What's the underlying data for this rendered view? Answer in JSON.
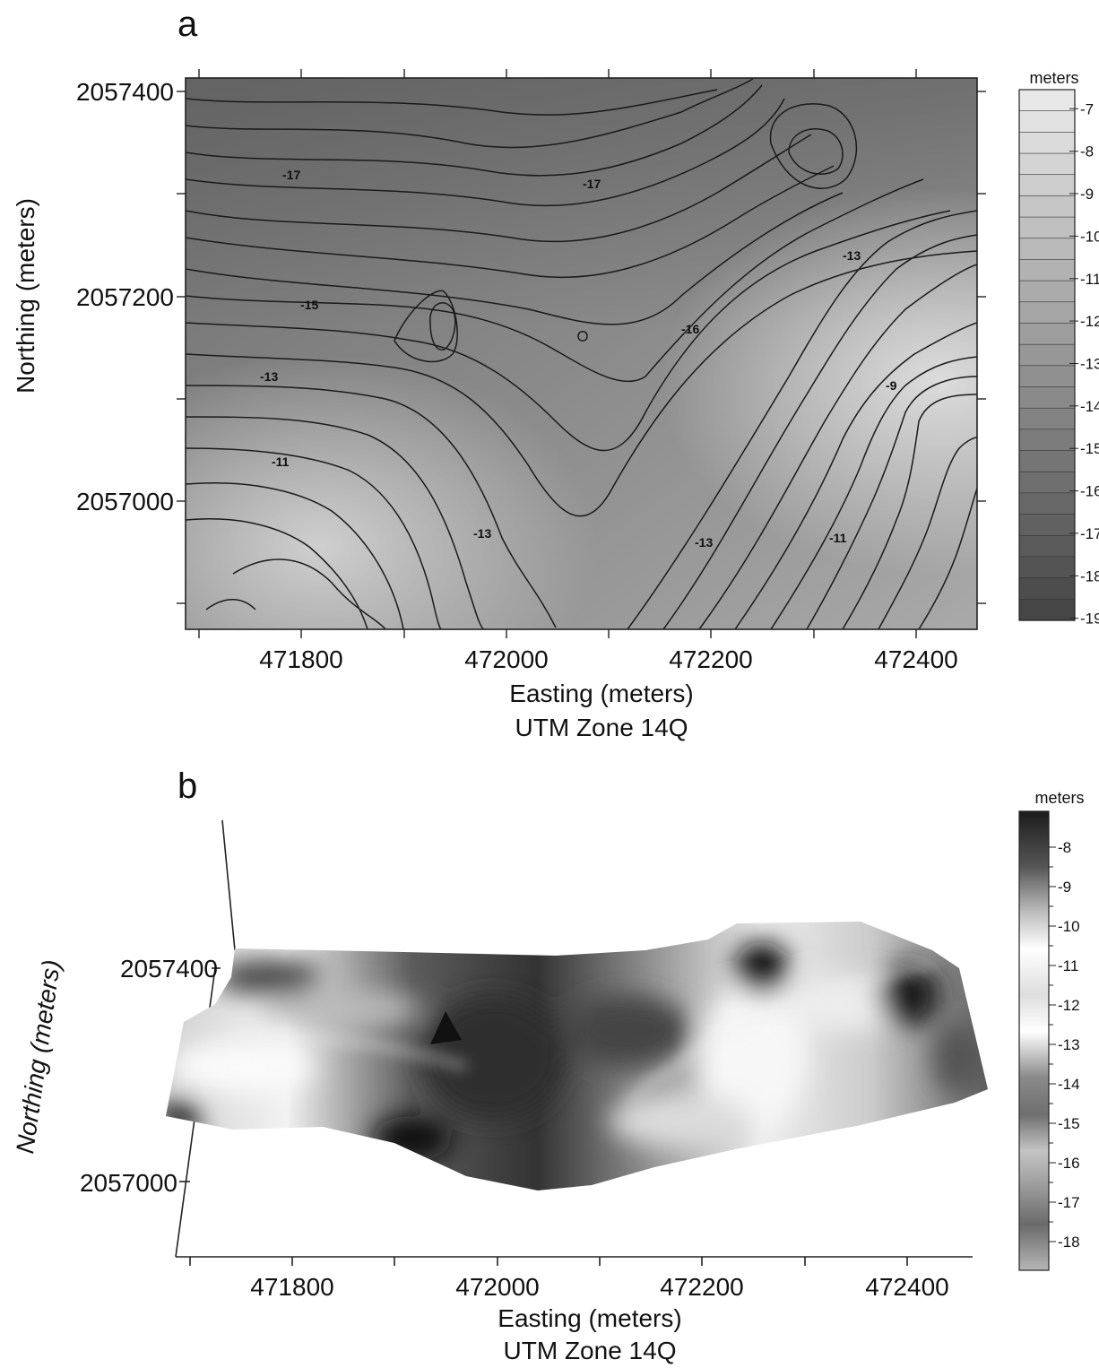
{
  "figure": {
    "panel_a": {
      "letter": "a",
      "x_ticks": [
        "471800",
        "472000",
        "472200",
        "472400"
      ],
      "y_ticks": [
        "2057400",
        "2057200",
        "2057000"
      ],
      "x_title": "Easting (meters)",
      "x_subtitle": "UTM Zone 14Q",
      "y_title": "Northing (meters)",
      "colorbar_unit": "meters",
      "colorbar_labels": [
        "-7",
        "-8",
        "-9",
        "-10",
        "-11",
        "-12",
        "-13",
        "-14",
        "-15",
        "-16",
        "-17",
        "-18",
        "-19"
      ],
      "contour_labels": [
        "-17",
        "-17",
        "-13",
        "-15",
        "-16",
        "-13",
        "-9",
        "-11",
        "-13",
        "-13",
        "-11"
      ]
    },
    "panel_b": {
      "letter": "b",
      "x_ticks": [
        "471800",
        "472000",
        "472200",
        "472400"
      ],
      "y_ticks": [
        "2057400",
        "2057000"
      ],
      "x_title": "Easting (meters)",
      "x_subtitle": "UTM Zone 14Q",
      "y_title": "Northing (meters)",
      "colorbar_unit": "meters",
      "colorbar_labels": [
        "-8",
        "-9",
        "-10",
        "-11",
        "-12",
        "-13",
        "-14",
        "-15",
        "-16",
        "-17",
        "-18"
      ]
    }
  },
  "colors": {
    "contour_line": "#1a1a1a",
    "shallow": "#d8d8d8",
    "deep": "#4a4a4a"
  }
}
